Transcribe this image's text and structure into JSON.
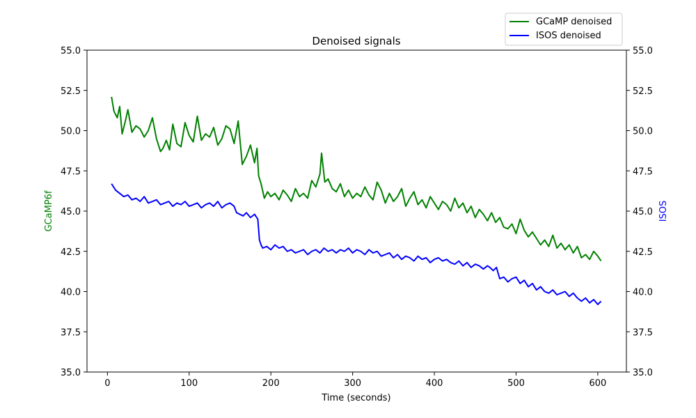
{
  "chart_data": {
    "type": "line",
    "title": "Denoised signals",
    "xlabel": "Time (seconds)",
    "ylabel_left": "GCaMP6f",
    "ylabel_right": "ISOS",
    "xlim": [
      -25,
      635
    ],
    "ylim": [
      35.0,
      55.0
    ],
    "x_ticks": [
      0,
      100,
      200,
      300,
      400,
      500,
      600
    ],
    "y_ticks": [
      35.0,
      37.5,
      40.0,
      42.5,
      45.0,
      47.5,
      50.0,
      52.5,
      55.0
    ],
    "y_tick_labels": [
      "35.0",
      "37.5",
      "40.0",
      "42.5",
      "45.0",
      "47.5",
      "50.0",
      "52.5",
      "55.0"
    ],
    "grid": false,
    "legend_position": "top-right",
    "series": [
      {
        "name": "GCaMP denoised",
        "axis": "left",
        "color": "#008000",
        "x": [
          5,
          8,
          12,
          15,
          18,
          22,
          25,
          30,
          35,
          40,
          45,
          50,
          55,
          60,
          65,
          68,
          72,
          76,
          80,
          85,
          90,
          95,
          100,
          105,
          110,
          115,
          120,
          125,
          130,
          135,
          140,
          145,
          150,
          155,
          160,
          165,
          170,
          175,
          180,
          183,
          185,
          188,
          192,
          196,
          200,
          205,
          210,
          215,
          220,
          225,
          230,
          235,
          240,
          245,
          250,
          255,
          260,
          262,
          266,
          270,
          275,
          280,
          285,
          290,
          295,
          300,
          305,
          310,
          315,
          320,
          325,
          330,
          335,
          340,
          345,
          350,
          355,
          360,
          365,
          370,
          375,
          380,
          385,
          390,
          395,
          400,
          405,
          410,
          415,
          420,
          425,
          430,
          435,
          440,
          445,
          450,
          455,
          460,
          465,
          470,
          475,
          480,
          485,
          490,
          495,
          500,
          505,
          510,
          515,
          520,
          525,
          530,
          535,
          540,
          545,
          550,
          555,
          560,
          565,
          570,
          575,
          580,
          585,
          590,
          595,
          600,
          604
        ],
        "y": [
          52.1,
          51.2,
          50.8,
          51.5,
          49.8,
          50.6,
          51.3,
          49.9,
          50.3,
          50.1,
          49.6,
          50.0,
          50.8,
          49.5,
          48.7,
          48.9,
          49.4,
          48.8,
          50.4,
          49.2,
          49.0,
          50.5,
          49.7,
          49.3,
          50.9,
          49.4,
          49.8,
          49.6,
          50.2,
          49.1,
          49.5,
          50.3,
          50.1,
          49.2,
          50.6,
          47.9,
          48.4,
          49.1,
          48.0,
          48.9,
          47.2,
          46.7,
          45.8,
          46.2,
          45.9,
          46.1,
          45.7,
          46.3,
          46.0,
          45.6,
          46.4,
          45.9,
          46.1,
          45.8,
          46.9,
          46.5,
          47.3,
          48.6,
          46.8,
          47.0,
          46.4,
          46.2,
          46.7,
          45.9,
          46.3,
          45.8,
          46.1,
          45.9,
          46.5,
          46.0,
          45.7,
          46.8,
          46.3,
          45.5,
          46.1,
          45.6,
          45.9,
          46.4,
          45.3,
          45.8,
          46.2,
          45.4,
          45.7,
          45.2,
          45.9,
          45.5,
          45.1,
          45.6,
          45.4,
          45.0,
          45.8,
          45.2,
          45.5,
          44.9,
          45.3,
          44.6,
          45.1,
          44.8,
          44.4,
          44.9,
          44.3,
          44.6,
          44.0,
          43.9,
          44.2,
          43.6,
          44.5,
          43.8,
          43.4,
          43.7,
          43.3,
          42.9,
          43.2,
          42.8,
          43.5,
          42.7,
          43.0,
          42.6,
          42.9,
          42.4,
          42.8,
          42.1,
          42.3,
          42.0,
          42.5,
          42.2,
          41.9
        ],
        "y_display": {}
      },
      {
        "name": "ISOS denoised",
        "axis": "right",
        "color": "#0000ff",
        "x": [
          5,
          10,
          15,
          20,
          25,
          30,
          35,
          40,
          45,
          50,
          55,
          60,
          65,
          70,
          75,
          80,
          85,
          90,
          95,
          100,
          105,
          110,
          115,
          120,
          125,
          130,
          135,
          140,
          145,
          150,
          155,
          158,
          162,
          166,
          170,
          175,
          180,
          184,
          186,
          188,
          190,
          195,
          200,
          205,
          210,
          215,
          220,
          225,
          230,
          235,
          240,
          245,
          250,
          255,
          260,
          265,
          270,
          275,
          280,
          285,
          290,
          295,
          300,
          305,
          310,
          315,
          320,
          325,
          330,
          335,
          340,
          345,
          350,
          355,
          360,
          365,
          370,
          375,
          380,
          385,
          390,
          395,
          400,
          405,
          410,
          415,
          420,
          425,
          430,
          435,
          440,
          445,
          450,
          455,
          460,
          465,
          468,
          472,
          476,
          480,
          485,
          490,
          495,
          500,
          505,
          510,
          515,
          520,
          525,
          530,
          535,
          540,
          545,
          550,
          555,
          560,
          565,
          570,
          575,
          580,
          585,
          590,
          595,
          600,
          604
        ],
        "y": [
          46.7,
          46.3,
          46.1,
          45.9,
          46.0,
          45.7,
          45.8,
          45.6,
          45.9,
          45.5,
          45.6,
          45.7,
          45.4,
          45.5,
          45.6,
          45.3,
          45.5,
          45.4,
          45.6,
          45.3,
          45.4,
          45.5,
          45.2,
          45.4,
          45.5,
          45.3,
          45.6,
          45.2,
          45.4,
          45.5,
          45.3,
          44.9,
          44.8,
          44.7,
          44.9,
          44.6,
          44.8,
          44.5,
          43.2,
          42.9,
          42.7,
          42.8,
          42.6,
          42.9,
          42.7,
          42.8,
          42.5,
          42.6,
          42.4,
          42.5,
          42.6,
          42.3,
          42.5,
          42.6,
          42.4,
          42.7,
          42.5,
          42.6,
          42.4,
          42.6,
          42.5,
          42.7,
          42.4,
          42.6,
          42.5,
          42.3,
          42.6,
          42.4,
          42.5,
          42.2,
          42.3,
          42.4,
          42.1,
          42.3,
          42.0,
          42.2,
          42.1,
          41.9,
          42.2,
          42.0,
          42.1,
          41.8,
          42.0,
          42.1,
          41.9,
          42.0,
          41.8,
          41.7,
          41.9,
          41.6,
          41.8,
          41.5,
          41.7,
          41.6,
          41.4,
          41.6,
          41.5,
          41.3,
          41.5,
          40.8,
          40.9,
          40.6,
          40.8,
          40.9,
          40.5,
          40.7,
          40.3,
          40.5,
          40.1,
          40.3,
          40.0,
          39.9,
          40.1,
          39.8,
          39.9,
          40.0,
          39.7,
          39.9,
          39.6,
          39.4,
          39.6,
          39.3,
          39.5,
          39.2,
          39.4
        ]
      }
    ]
  }
}
